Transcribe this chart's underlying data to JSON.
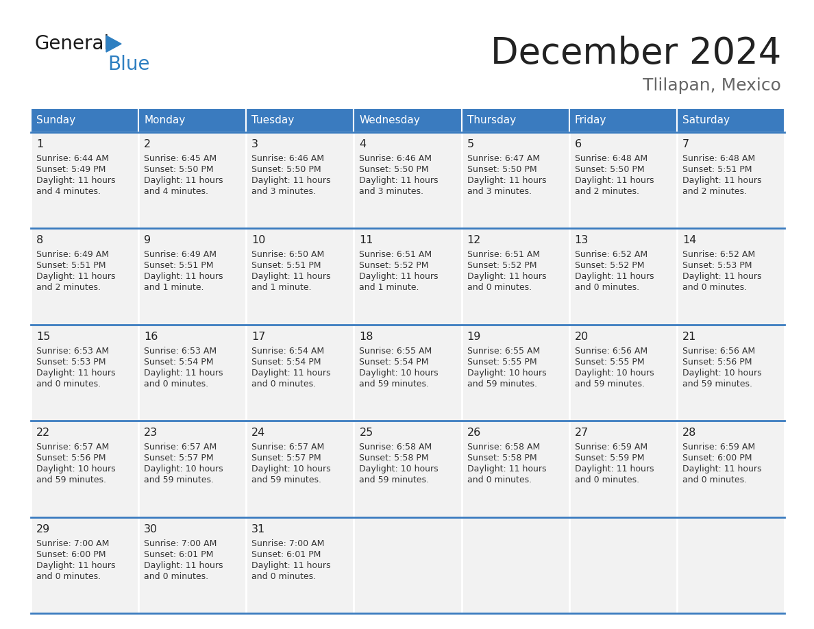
{
  "title": "December 2024",
  "subtitle": "Tlilapan, Mexico",
  "days_of_week": [
    "Sunday",
    "Monday",
    "Tuesday",
    "Wednesday",
    "Thursday",
    "Friday",
    "Saturday"
  ],
  "header_bg": "#3a7bbf",
  "header_text": "#ffffff",
  "cell_bg": "#f2f2f2",
  "border_color": "#3a7bbf",
  "day_num_color": "#222222",
  "cell_text_color": "#333333",
  "title_color": "#222222",
  "subtitle_color": "#666666",
  "logo_black": "#1a1a1a",
  "logo_blue": "#2e7fc1",
  "logo_triangle": "#2e7fc1",
  "calendar_data": [
    [
      {
        "day": 1,
        "sunrise": "6:44 AM",
        "sunset": "5:49 PM",
        "daylight": "11 hours\nand 4 minutes."
      },
      {
        "day": 2,
        "sunrise": "6:45 AM",
        "sunset": "5:50 PM",
        "daylight": "11 hours\nand 4 minutes."
      },
      {
        "day": 3,
        "sunrise": "6:46 AM",
        "sunset": "5:50 PM",
        "daylight": "11 hours\nand 3 minutes."
      },
      {
        "day": 4,
        "sunrise": "6:46 AM",
        "sunset": "5:50 PM",
        "daylight": "11 hours\nand 3 minutes."
      },
      {
        "day": 5,
        "sunrise": "6:47 AM",
        "sunset": "5:50 PM",
        "daylight": "11 hours\nand 3 minutes."
      },
      {
        "day": 6,
        "sunrise": "6:48 AM",
        "sunset": "5:50 PM",
        "daylight": "11 hours\nand 2 minutes."
      },
      {
        "day": 7,
        "sunrise": "6:48 AM",
        "sunset": "5:51 PM",
        "daylight": "11 hours\nand 2 minutes."
      }
    ],
    [
      {
        "day": 8,
        "sunrise": "6:49 AM",
        "sunset": "5:51 PM",
        "daylight": "11 hours\nand 2 minutes."
      },
      {
        "day": 9,
        "sunrise": "6:49 AM",
        "sunset": "5:51 PM",
        "daylight": "11 hours\nand 1 minute."
      },
      {
        "day": 10,
        "sunrise": "6:50 AM",
        "sunset": "5:51 PM",
        "daylight": "11 hours\nand 1 minute."
      },
      {
        "day": 11,
        "sunrise": "6:51 AM",
        "sunset": "5:52 PM",
        "daylight": "11 hours\nand 1 minute."
      },
      {
        "day": 12,
        "sunrise": "6:51 AM",
        "sunset": "5:52 PM",
        "daylight": "11 hours\nand 0 minutes."
      },
      {
        "day": 13,
        "sunrise": "6:52 AM",
        "sunset": "5:52 PM",
        "daylight": "11 hours\nand 0 minutes."
      },
      {
        "day": 14,
        "sunrise": "6:52 AM",
        "sunset": "5:53 PM",
        "daylight": "11 hours\nand 0 minutes."
      }
    ],
    [
      {
        "day": 15,
        "sunrise": "6:53 AM",
        "sunset": "5:53 PM",
        "daylight": "11 hours\nand 0 minutes."
      },
      {
        "day": 16,
        "sunrise": "6:53 AM",
        "sunset": "5:54 PM",
        "daylight": "11 hours\nand 0 minutes."
      },
      {
        "day": 17,
        "sunrise": "6:54 AM",
        "sunset": "5:54 PM",
        "daylight": "11 hours\nand 0 minutes."
      },
      {
        "day": 18,
        "sunrise": "6:55 AM",
        "sunset": "5:54 PM",
        "daylight": "10 hours\nand 59 minutes."
      },
      {
        "day": 19,
        "sunrise": "6:55 AM",
        "sunset": "5:55 PM",
        "daylight": "10 hours\nand 59 minutes."
      },
      {
        "day": 20,
        "sunrise": "6:56 AM",
        "sunset": "5:55 PM",
        "daylight": "10 hours\nand 59 minutes."
      },
      {
        "day": 21,
        "sunrise": "6:56 AM",
        "sunset": "5:56 PM",
        "daylight": "10 hours\nand 59 minutes."
      }
    ],
    [
      {
        "day": 22,
        "sunrise": "6:57 AM",
        "sunset": "5:56 PM",
        "daylight": "10 hours\nand 59 minutes."
      },
      {
        "day": 23,
        "sunrise": "6:57 AM",
        "sunset": "5:57 PM",
        "daylight": "10 hours\nand 59 minutes."
      },
      {
        "day": 24,
        "sunrise": "6:57 AM",
        "sunset": "5:57 PM",
        "daylight": "10 hours\nand 59 minutes."
      },
      {
        "day": 25,
        "sunrise": "6:58 AM",
        "sunset": "5:58 PM",
        "daylight": "10 hours\nand 59 minutes."
      },
      {
        "day": 26,
        "sunrise": "6:58 AM",
        "sunset": "5:58 PM",
        "daylight": "11 hours\nand 0 minutes."
      },
      {
        "day": 27,
        "sunrise": "6:59 AM",
        "sunset": "5:59 PM",
        "daylight": "11 hours\nand 0 minutes."
      },
      {
        "day": 28,
        "sunrise": "6:59 AM",
        "sunset": "6:00 PM",
        "daylight": "11 hours\nand 0 minutes."
      }
    ],
    [
      {
        "day": 29,
        "sunrise": "7:00 AM",
        "sunset": "6:00 PM",
        "daylight": "11 hours\nand 0 minutes."
      },
      {
        "day": 30,
        "sunrise": "7:00 AM",
        "sunset": "6:01 PM",
        "daylight": "11 hours\nand 0 minutes."
      },
      {
        "day": 31,
        "sunrise": "7:00 AM",
        "sunset": "6:01 PM",
        "daylight": "11 hours\nand 0 minutes."
      },
      null,
      null,
      null,
      null
    ]
  ]
}
